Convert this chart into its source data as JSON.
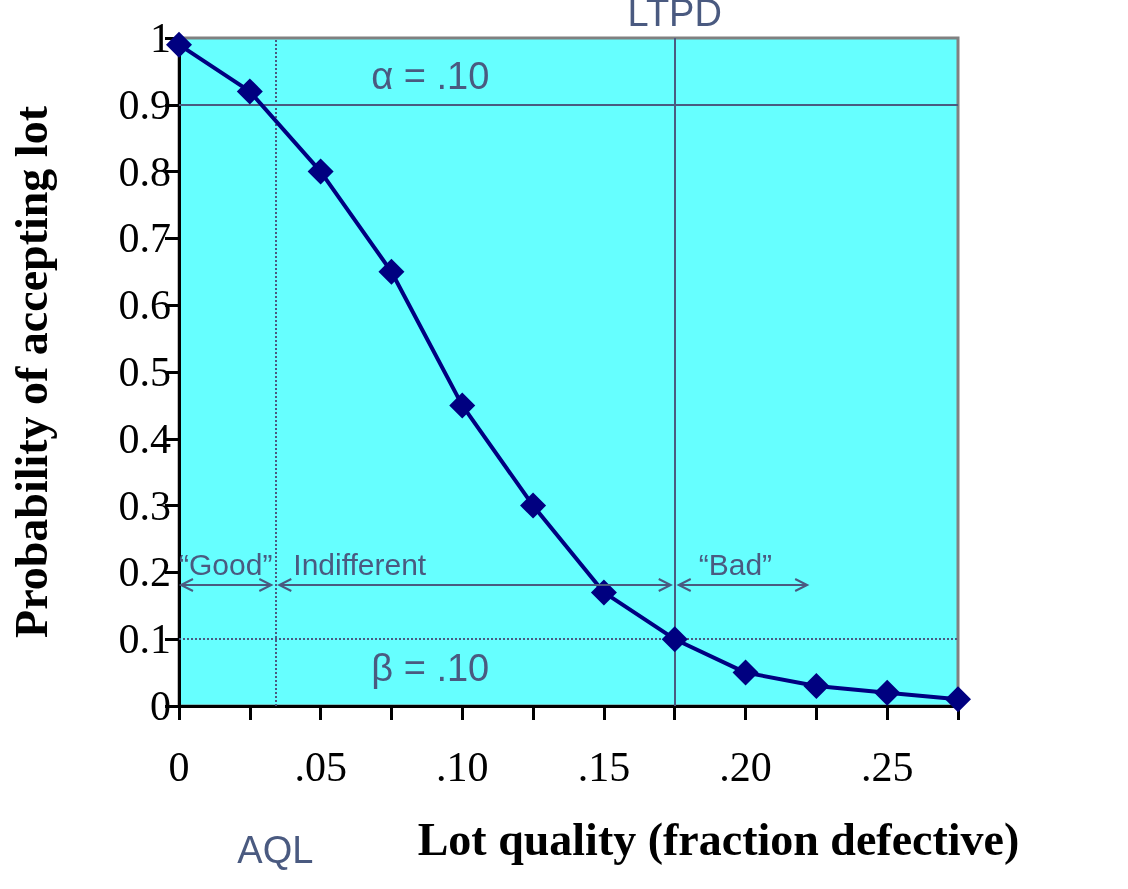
{
  "chart_data": {
    "type": "line",
    "xlabel": "Lot quality (fraction defective)",
    "ylabel": "Probability of accepting lot",
    "x": [
      0,
      0.025,
      0.05,
      0.075,
      0.1,
      0.125,
      0.15,
      0.175,
      0.2,
      0.225,
      0.25,
      0.275
    ],
    "series": [
      {
        "color": "#000080",
        "values": [
          0.99,
          0.92,
          0.8,
          0.65,
          0.45,
          0.3,
          0.17,
          0.1,
          0.05,
          0.03,
          0.02,
          0.01
        ]
      }
    ],
    "xlim": [
      0,
      0.275
    ],
    "xticks": [
      0,
      {
        "value": 0.025,
        "label": null
      },
      {
        "value": 0.05,
        "label": ".05"
      },
      {
        "value": 0.075,
        "label": null
      },
      {
        "value": 0.1,
        "label": ".10"
      },
      {
        "value": 0.125,
        "label": null
      },
      {
        "value": 0.15,
        "label": ".15"
      },
      {
        "value": 0.175,
        "label": null
      },
      {
        "value": 0.2,
        "label": ".20"
      },
      {
        "value": 0.225,
        "label": null
      },
      {
        "value": 0.25,
        "label": ".25"
      },
      {
        "value": 0.275,
        "label": null
      }
    ],
    "ylim": [
      0,
      1
    ],
    "yticks": [
      0,
      0.1,
      0.2,
      0.3,
      0.4,
      0.5,
      0.6,
      0.7,
      0.8,
      0.9,
      1
    ],
    "ref_lines": [
      {
        "axis": "x",
        "value": 0.034,
        "label": "AQL",
        "line_style": "dotted",
        "color": "#4a5a80"
      },
      {
        "axis": "x",
        "value": 0.175,
        "label": "LTPD",
        "line_style": "solid",
        "color": "#4a5a80"
      },
      {
        "axis": "y",
        "value": 0.9,
        "label": "α = .10",
        "line_style": "solid",
        "color": "#4a5a80"
      },
      {
        "axis": "y",
        "value": 0.1,
        "label": "β = .10",
        "line_style": "dotted",
        "color": "#4a5a80"
      }
    ],
    "annotations": [
      "“Good”",
      "Indifferent",
      "“Bad”"
    ],
    "marker": "diamond",
    "line_style": "solid",
    "grid": false
  }
}
